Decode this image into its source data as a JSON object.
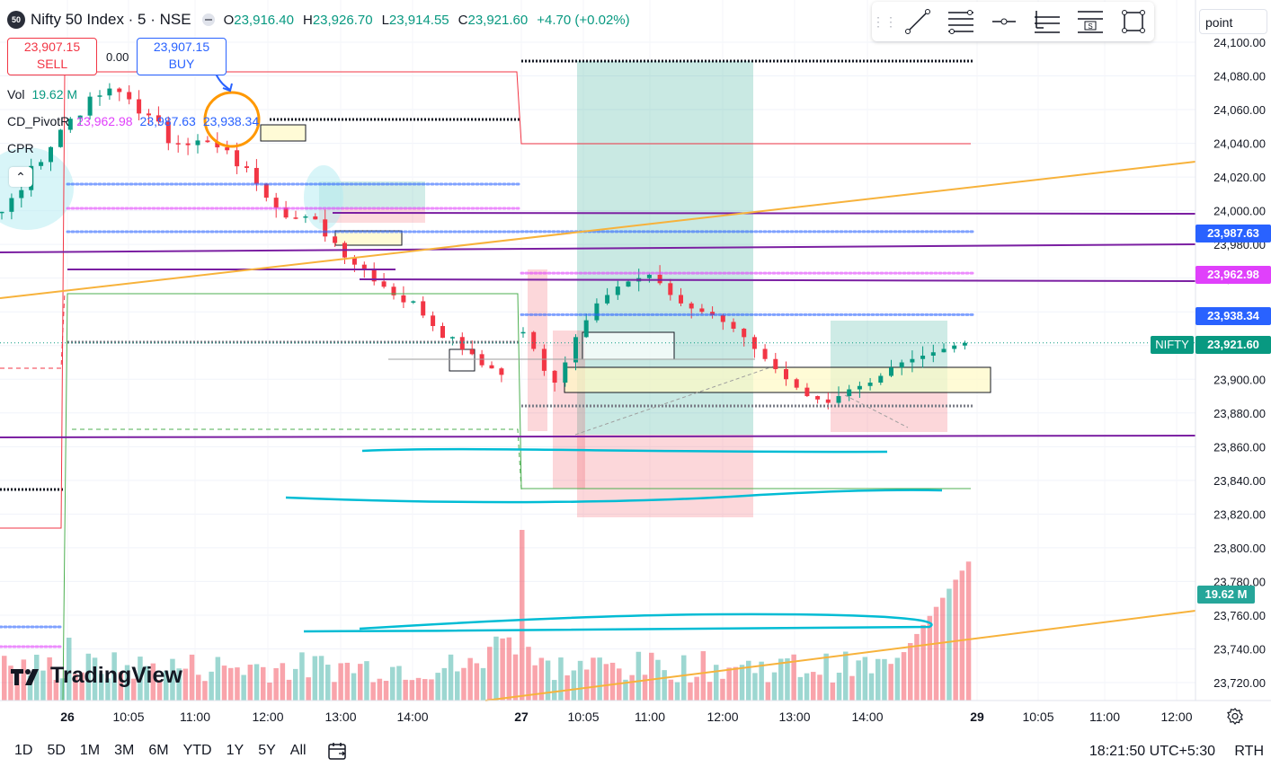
{
  "header": {
    "symbol_badge": "50",
    "title": "Nifty 50 Index · 5 · NSE",
    "ohlc": {
      "o_label": "O",
      "o": "23,916.40",
      "h_label": "H",
      "h": "23,926.70",
      "l_label": "L",
      "l": "23,914.55",
      "c_label": "C",
      "c": "23,921.60",
      "change": "+4.70 (+0.02%)"
    }
  },
  "trade": {
    "sell_price": "23,907.15",
    "sell_label": "SELL",
    "spread": "0.00",
    "buy_price": "23,907.15",
    "buy_label": "BUY"
  },
  "indicators": {
    "vol_label": "Vol",
    "vol_value": "19.62 M",
    "pivot_label": "CD_PivotR",
    "pivot_values": [
      "23,962.98",
      "23,987.63",
      "23,938.34"
    ],
    "cpr_label": "CPR"
  },
  "drawing_toolbar": {
    "tools": [
      "trend-line",
      "fib-retracement",
      "horizontal-ray",
      "long-position",
      "short-position",
      "rectangle"
    ]
  },
  "point_menu": "point",
  "price_labels": {
    "pivot_r": "23,987.63",
    "pivot_m": "23,962.98",
    "pivot_s": "23,938.34",
    "symbol": "NIFTY",
    "last": "23,921.60",
    "volume": "19.62 M"
  },
  "colors": {
    "up": "#089981",
    "down": "#f23645",
    "pivot_blue": "#2962ff",
    "pivot_pink": "#e040fb",
    "purple": "#7b1fa2",
    "orange": "#f7b23b",
    "cyan": "#00bcd4"
  },
  "chart_data": {
    "type": "candlestick",
    "interval": "5m",
    "y_axis_ticks": [
      "24,100.00",
      "24,080.00",
      "24,060.00",
      "24,040.00",
      "24,020.00",
      "24,000.00",
      "23,980.00",
      "23,960.00",
      "23,940.00",
      "23,920.00",
      "23,900.00",
      "23,880.00",
      "23,860.00",
      "23,840.00",
      "23,820.00",
      "23,800.00",
      "23,780.00",
      "23,760.00",
      "23,740.00",
      "23,720.00"
    ],
    "ylim": [
      23712,
      24104
    ],
    "x_axis_ticks": [
      "26",
      "10:05",
      "11:00",
      "12:00",
      "13:00",
      "14:00",
      "27",
      "10:05",
      "11:00",
      "12:00",
      "13:00",
      "14:00",
      "29",
      "10:05",
      "11:00",
      "12:00"
    ],
    "x_bold_ticks": [
      "26",
      "27",
      "29"
    ],
    "horizontal_levels": {
      "pivot_r": 23987.63,
      "pivot_m": 23962.98,
      "pivot_s": 23938.34,
      "last": 23921.6
    },
    "day2_close_path": [
      23928,
      23918,
      23905,
      23898,
      23910,
      23925,
      23935,
      23945,
      23950,
      23955,
      23958,
      23960,
      23962,
      23957,
      23950,
      23945,
      23942,
      23940,
      23938,
      23934,
      23930,
      23925,
      23918,
      23912,
      23906,
      23900,
      23895,
      23890,
      23888,
      23886,
      23890,
      23894,
      23896,
      23898,
      23902,
      23907,
      23910,
      23912,
      23914,
      23916,
      23918,
      23920,
      23921.6
    ]
  },
  "footer": {
    "timeframes": [
      "1D",
      "5D",
      "1M",
      "3M",
      "6M",
      "YTD",
      "1Y",
      "5Y",
      "All"
    ],
    "clock": "18:21:50 UTC+5:30",
    "session": "RTH",
    "logo": "TradingView"
  }
}
